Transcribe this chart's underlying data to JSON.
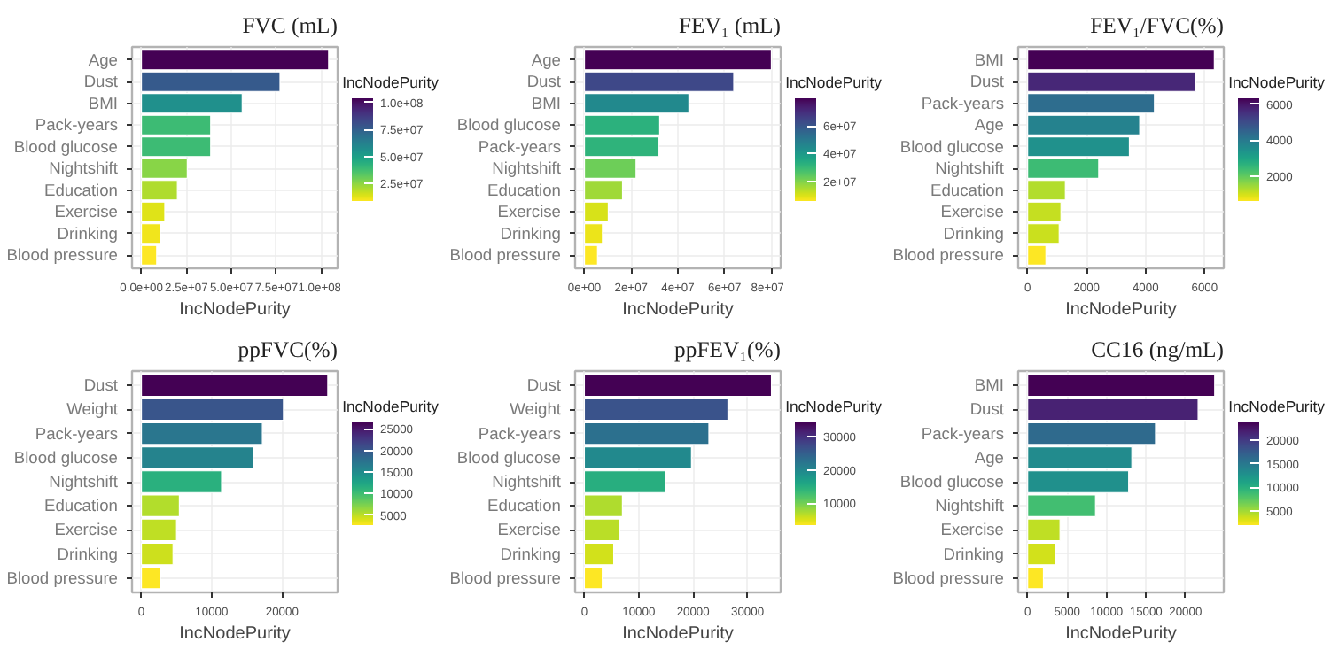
{
  "chart_data": [
    {
      "type": "bar",
      "orientation": "horizontal",
      "title": "FVC (mL)",
      "xlabel": "IncNodePurity",
      "clabel": "IncNodePurity",
      "grid": true,
      "categories": [
        "Age",
        "Dust",
        "BMI",
        "Pack-years",
        "Blood glucose",
        "Nightshift",
        "Education",
        "Exercise",
        "Drinking",
        "Blood pressure"
      ],
      "values": [
        104000000,
        77000000,
        56000000,
        38500000,
        38500000,
        25500000,
        20000000,
        13000000,
        10500000,
        8500000
      ],
      "xlim": [
        -5200000,
        109000000
      ],
      "xticks": [
        {
          "value": 0,
          "label": "0.0e+00"
        },
        {
          "value": 25000000,
          "label": "2.5e+07"
        },
        {
          "value": 50000000,
          "label": "5.0e+07"
        },
        {
          "value": 75000000,
          "label": "7.5e+07"
        },
        {
          "value": 100000000,
          "label": "1.0e+08"
        }
      ],
      "clim": [
        8500000,
        104000000
      ],
      "cticks": [
        {
          "value": 25000000,
          "label": "2.5e+07"
        },
        {
          "value": 50000000,
          "label": "5.0e+07"
        },
        {
          "value": 75000000,
          "label": "7.5e+07"
        },
        {
          "value": 100000000,
          "label": "1.0e+08"
        }
      ]
    },
    {
      "type": "bar",
      "orientation": "horizontal",
      "title": "FEV₁ (mL)",
      "xlabel": "IncNodePurity",
      "clabel": "IncNodePurity",
      "grid": true,
      "categories": [
        "Age",
        "Dust",
        "BMI",
        "Blood glucose",
        "Pack-years",
        "Nightshift",
        "Education",
        "Exercise",
        "Drinking",
        "Blood pressure"
      ],
      "values": [
        80000000,
        63900000,
        44700000,
        32200000,
        31700000,
        22100000,
        16300000,
        10200000,
        7700000,
        5600000
      ],
      "xlim": [
        -4000000,
        84000000
      ],
      "xticks": [
        {
          "value": 0,
          "label": "0e+00"
        },
        {
          "value": 20000000,
          "label": "2e+07"
        },
        {
          "value": 40000000,
          "label": "4e+07"
        },
        {
          "value": 60000000,
          "label": "6e+07"
        },
        {
          "value": 80000000,
          "label": "8e+07"
        }
      ],
      "clim": [
        5600000,
        80000000
      ],
      "cticks": [
        {
          "value": 20000000,
          "label": "2e+07"
        },
        {
          "value": 40000000,
          "label": "4e+07"
        },
        {
          "value": 60000000,
          "label": "6e+07"
        }
      ]
    },
    {
      "type": "bar",
      "orientation": "horizontal",
      "title": "FEV₁/FVC(%)",
      "xlabel": "IncNodePurity",
      "clabel": "IncNodePurity",
      "grid": true,
      "categories": [
        "BMI",
        "Dust",
        "Pack-years",
        "Age",
        "Blood glucose",
        "Nightshift",
        "Education",
        "Exercise",
        "Drinking",
        "Blood pressure"
      ],
      "values": [
        6330,
        5700,
        4300,
        3800,
        3450,
        2410,
        1280,
        1130,
        1070,
        620
      ],
      "xlim": [
        -320,
        6650
      ],
      "xticks": [
        0,
        2000,
        4000,
        6000
      ],
      "clim": [
        620,
        6330
      ],
      "cticks": [
        2000,
        4000,
        6000
      ]
    },
    {
      "type": "bar",
      "orientation": "horizontal",
      "title": "ppFVC(%)",
      "xlabel": "IncNodePurity",
      "clabel": "IncNodePurity",
      "grid": true,
      "categories": [
        "Dust",
        "Weight",
        "Pack-years",
        "Blood glucose",
        "Nightshift",
        "Education",
        "Exercise",
        "Drinking",
        "Blood pressure"
      ],
      "values": [
        26500,
        20200,
        17200,
        15900,
        11400,
        5400,
        5000,
        4500,
        2700
      ],
      "xlim": [
        -1330,
        27900
      ],
      "xticks": [
        0,
        10000,
        20000
      ],
      "clim": [
        2700,
        26500
      ],
      "cticks": [
        5000,
        10000,
        15000,
        20000,
        25000
      ]
    },
    {
      "type": "bar",
      "orientation": "horizontal",
      "title": "ppFEV₁(%)",
      "xlabel": "IncNodePurity",
      "clabel": "IncNodePurity",
      "grid": true,
      "categories": [
        "Dust",
        "Weight",
        "Pack-years",
        "Blood glucose",
        "Nightshift",
        "Education",
        "Exercise",
        "Drinking",
        "Blood pressure"
      ],
      "values": [
        34400,
        26400,
        22900,
        19700,
        14900,
        7000,
        6500,
        5400,
        3300
      ],
      "xlim": [
        -1700,
        36100
      ],
      "xticks": [
        0,
        10000,
        20000,
        30000
      ],
      "clim": [
        3300,
        34400
      ],
      "cticks": [
        10000,
        20000,
        30000
      ]
    },
    {
      "type": "bar",
      "orientation": "horizontal",
      "title": "CC16 (ng/mL)",
      "xlabel": "IncNodePurity",
      "clabel": "IncNodePurity",
      "grid": true,
      "categories": [
        "BMI",
        "Dust",
        "Pack-years",
        "Age",
        "Blood glucose",
        "Nightshift",
        "Exercise",
        "Drinking",
        "Blood pressure"
      ],
      "values": [
        23700,
        21600,
        16200,
        13200,
        12800,
        8600,
        4100,
        3500,
        2000
      ],
      "xlim": [
        -1200,
        24850
      ],
      "xticks": [
        0,
        5000,
        10000,
        15000,
        20000
      ],
      "clim": [
        2000,
        23700
      ],
      "cticks": [
        5000,
        10000,
        15000,
        20000
      ]
    }
  ]
}
